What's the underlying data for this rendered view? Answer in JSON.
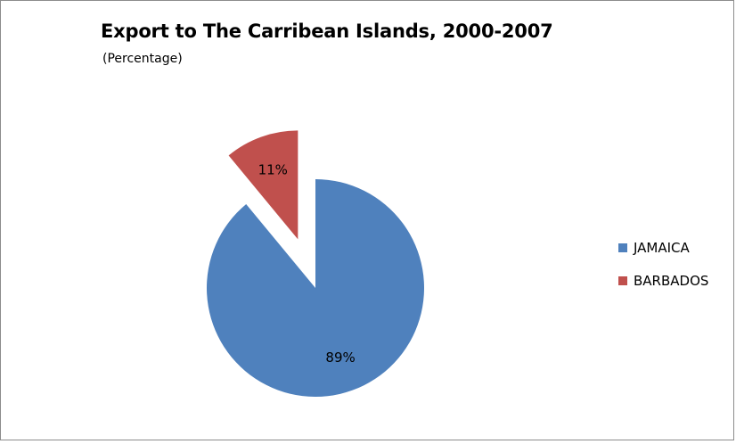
{
  "chart_data": {
    "type": "pie",
    "title": "Export to The Carribean Islands, 2000-2007",
    "subtitle": "(Percentage)",
    "categories": [
      "JAMAICA",
      "BARBADOS"
    ],
    "values": [
      89,
      11
    ],
    "value_labels": [
      "89%",
      "11%"
    ],
    "colors": [
      "#4f81bd",
      "#c0504d"
    ],
    "exploded": [
      false,
      true
    ],
    "legend_position": "right"
  }
}
